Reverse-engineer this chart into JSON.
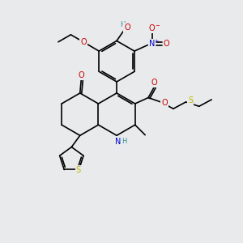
{
  "background_color": "#e8eaec",
  "figsize": [
    3.0,
    3.0
  ],
  "dpi": 100,
  "atom_colors": {
    "C": "#000000",
    "O": "#cc0000",
    "N": "#0000cc",
    "S": "#b8b800",
    "H": "#2f8f8f"
  },
  "bond_color": "#000000",
  "bond_width": 1.2,
  "font_size": 7.0
}
